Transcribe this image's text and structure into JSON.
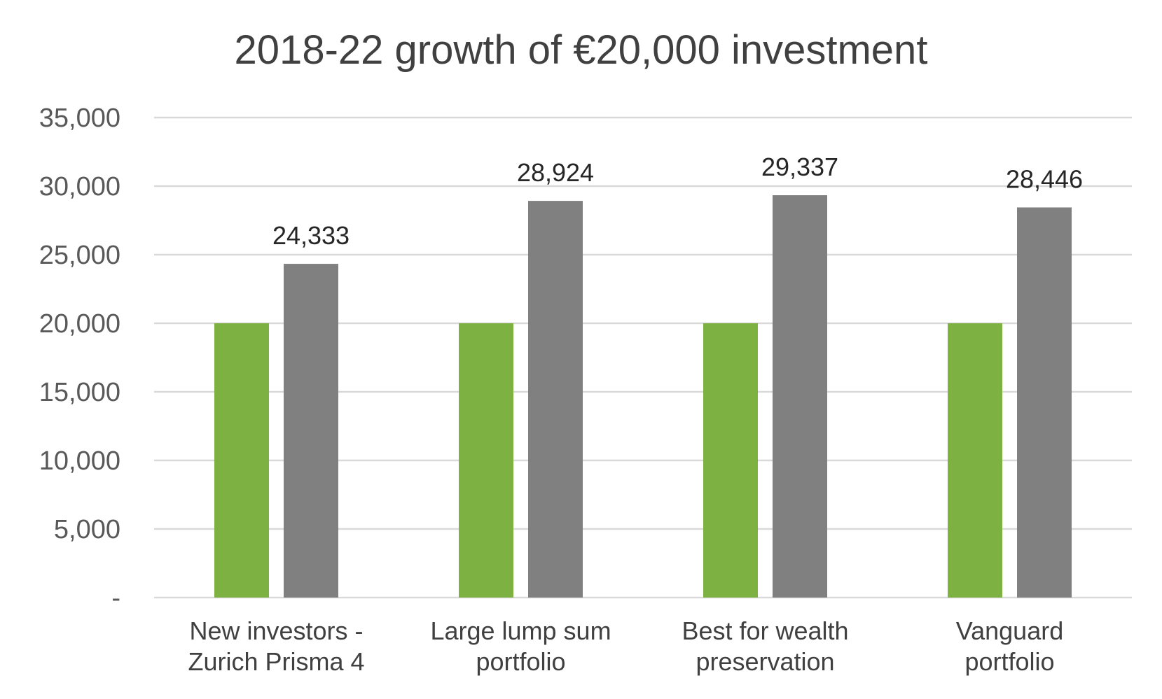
{
  "chart_data": {
    "type": "bar",
    "title": "2018-22 growth of €20,000 investment",
    "xlabel": "",
    "ylabel": "",
    "categories": [
      [
        "New investors -",
        "Zurich Prisma 4"
      ],
      [
        "Large lump sum",
        "portfolio"
      ],
      [
        "Best for wealth",
        "preservation"
      ],
      [
        "Vanguard",
        "portfolio"
      ]
    ],
    "series": [
      {
        "color": "#7db243",
        "values": [
          20000,
          20000,
          20000,
          20000
        ],
        "show_labels": false
      },
      {
        "color": "#808080",
        "values": [
          24333,
          28924,
          29337,
          28446
        ],
        "labels": [
          "24,333",
          "28,924",
          "29,337",
          "28,446"
        ],
        "show_labels": true
      }
    ],
    "ylim": [
      0,
      35000
    ],
    "yticks": [
      0,
      5000,
      10000,
      15000,
      20000,
      25000,
      30000,
      35000
    ],
    "ytick_labels": [
      "-",
      "5,000",
      "10,000",
      "15,000",
      "20,000",
      "25,000",
      "30,000",
      "35,000"
    ],
    "grid": true,
    "gridline_color": "#d9d9d9",
    "legend": "none"
  }
}
